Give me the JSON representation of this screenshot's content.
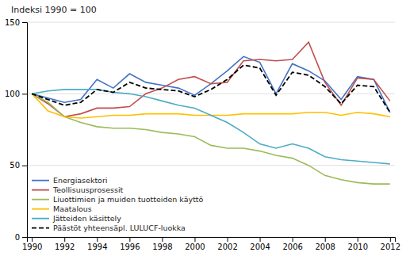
{
  "chart_data": {
    "type": "line",
    "ylabel": "Indeksi 1990 = 100",
    "x": [
      1990,
      1991,
      1992,
      1993,
      1994,
      1995,
      1996,
      1997,
      1998,
      1999,
      2000,
      2001,
      2002,
      2003,
      2004,
      2005,
      2006,
      2007,
      2008,
      2009,
      2010,
      2011,
      2012
    ],
    "series": [
      {
        "name": "Energiasektori",
        "color": "#4472C4",
        "values": [
          100,
          97,
          94,
          96,
          110,
          104,
          114,
          108,
          106,
          104,
          99,
          107,
          116,
          126,
          122,
          100,
          121,
          116,
          109,
          96,
          112,
          110,
          87
        ]
      },
      {
        "name": "Teollisuusprosessit",
        "color": "#C0504D",
        "values": [
          100,
          93,
          84,
          86,
          90,
          90,
          91,
          100,
          104,
          110,
          112,
          107,
          108,
          123,
          124,
          123,
          124,
          136,
          108,
          92,
          111,
          110,
          95
        ]
      },
      {
        "name": "Liuottimien ja muiden tuotteiden käyttö",
        "color": "#9BBB59",
        "values": [
          100,
          94,
          84,
          80,
          77,
          76,
          76,
          75,
          73,
          72,
          70,
          64,
          62,
          62,
          60,
          57,
          55,
          50,
          43,
          40,
          38,
          37,
          37
        ]
      },
      {
        "name": "Maatalous",
        "color": "#FFBF00",
        "values": [
          100,
          88,
          84,
          83,
          84,
          85,
          85,
          86,
          86,
          86,
          85,
          85,
          85,
          86,
          86,
          86,
          86,
          87,
          87,
          85,
          87,
          86,
          84
        ]
      },
      {
        "name": "Jätteiden käsittely",
        "color": "#4BACC6",
        "values": [
          100,
          102,
          103,
          103,
          103,
          101,
          100,
          98,
          95,
          92,
          90,
          85,
          80,
          73,
          65,
          62,
          65,
          62,
          56,
          54,
          53,
          52,
          51
        ]
      },
      {
        "name": "Päästöt yhteensäpl. LULUCF-luokka",
        "color": "#000000",
        "line_style": "dashed",
        "values": [
          100,
          96,
          92,
          94,
          103,
          101,
          108,
          104,
          103,
          102,
          98,
          103,
          110,
          120,
          118,
          99,
          115,
          113,
          105,
          93,
          106,
          105,
          87
        ]
      }
    ],
    "xlim": [
      1989.7,
      2012.3
    ],
    "xticks": [
      1990,
      1992,
      1994,
      1996,
      1998,
      2000,
      2002,
      2004,
      2006,
      2008,
      2010,
      2012
    ],
    "ylim": [
      0,
      150
    ],
    "yticks": [
      0,
      50,
      100,
      150
    ],
    "grid": "y",
    "legend": "lower left"
  }
}
